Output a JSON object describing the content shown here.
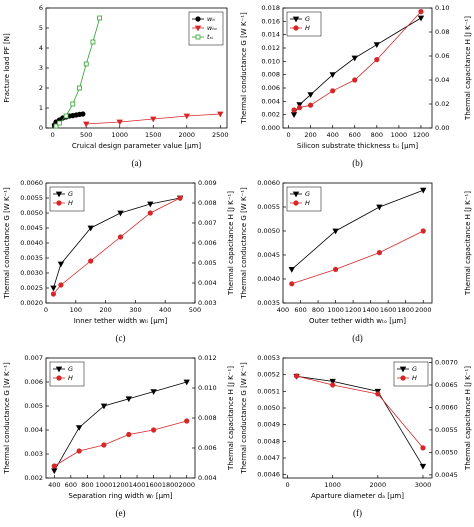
{
  "chart_data": [
    {
      "type": "line",
      "caption": "(a)",
      "xlabel": "Cruical design parameter value [μm]",
      "ylabel": "Fracture load PF [N]",
      "xlim": [
        -100,
        2600
      ],
      "xticks": [
        0,
        500,
        1000,
        1500,
        2000,
        2500
      ],
      "ylim": [
        0,
        6
      ],
      "yticks": [
        0,
        1,
        2,
        3,
        4,
        5,
        6
      ],
      "legend": "upper right",
      "series": [
        {
          "name": "wₜᵢ",
          "color": "#000000",
          "marker": "circle",
          "filled": true,
          "x": [
            25,
            50,
            100,
            150,
            200,
            250,
            300,
            350,
            400,
            450
          ],
          "values": [
            0.15,
            0.3,
            0.4,
            0.5,
            0.55,
            0.6,
            0.62,
            0.65,
            0.68,
            0.7
          ]
        },
        {
          "name": "wₜₒ",
          "color": "#d62728",
          "marker": "triangle-down",
          "filled": true,
          "x": [
            500,
            1000,
            1500,
            2000,
            2500
          ],
          "values": [
            0.2,
            0.3,
            0.45,
            0.6,
            0.7
          ]
        },
        {
          "name": "tₛᵢ",
          "color": "#2ca02c",
          "marker": "square",
          "filled": false,
          "x": [
            50,
            100,
            200,
            300,
            400,
            500,
            600,
            700
          ],
          "values": [
            0.1,
            0.25,
            0.6,
            1.2,
            2.0,
            3.2,
            4.3,
            5.5
          ]
        }
      ]
    },
    {
      "type": "line",
      "caption": "(b)",
      "xlabel": "Silicon substrate thickness tₛᵢ [μm]",
      "ylabel": "Thermal conductance G [W K⁻¹]",
      "y2label": "Thermal capacitance H [J K⁻¹]",
      "xlim": [
        -50,
        1300
      ],
      "xticks": [
        0,
        200,
        400,
        600,
        800,
        1000,
        1200
      ],
      "ylim": [
        0,
        0.018
      ],
      "yticks": [
        {
          "value": 0,
          "label": "0.000"
        },
        0.002,
        0.004,
        0.006,
        0.008,
        {
          "value": 0.01,
          "label": "0.010"
        },
        0.012,
        0.014,
        0.016,
        0.018
      ],
      "y2lim": [
        0,
        0.1
      ],
      "y2ticks": [
        {
          "value": 0,
          "label": "0.00"
        },
        0.02,
        0.04,
        0.06,
        0.08,
        {
          "value": 0.1,
          "label": "0.10"
        }
      ],
      "legend": "upper left",
      "series": [
        {
          "name": "G",
          "color": "#000000",
          "marker": "triangle-down",
          "filled": true,
          "x": [
            50,
            100,
            200,
            400,
            600,
            800,
            1200
          ],
          "values": [
            0.002,
            0.0035,
            0.005,
            0.008,
            0.0105,
            0.0125,
            0.0165
          ]
        },
        {
          "name": "H",
          "color": "#d62728",
          "marker": "circle",
          "filled": true,
          "axis": "y2",
          "x": [
            50,
            100,
            200,
            400,
            600,
            800,
            1200
          ],
          "values": [
            0.015,
            0.017,
            0.019,
            0.031,
            0.04,
            0.057,
            0.097
          ]
        }
      ]
    },
    {
      "type": "line",
      "caption": "(c)",
      "xlabel": "Inner tether width wₜᵢ [μm]",
      "ylabel": "Thermal conductance G [W K⁻¹]",
      "y2label": "Thermal capacitance H [J K⁻¹]",
      "xlim": [
        0,
        500
      ],
      "xticks": [
        0,
        100,
        200,
        300,
        400,
        500
      ],
      "ylim": [
        0.002,
        0.006
      ],
      "yticks": [
        {
          "value": 0.002,
          "label": "0.0020"
        },
        0.0025,
        {
          "value": 0.003,
          "label": "0.0030"
        },
        0.0035,
        {
          "value": 0.004,
          "label": "0.0040"
        },
        0.0045,
        {
          "value": 0.005,
          "label": "0.0050"
        },
        0.0055,
        {
          "value": 0.006,
          "label": "0.0060"
        }
      ],
      "y2lim": [
        0.003,
        0.009
      ],
      "y2ticks": [
        0.003,
        0.004,
        0.005,
        0.006,
        0.007,
        0.008,
        0.009
      ],
      "legend": "upper left",
      "series": [
        {
          "name": "G",
          "color": "#000000",
          "marker": "triangle-down",
          "filled": true,
          "x": [
            25,
            50,
            150,
            250,
            350,
            450
          ],
          "values": [
            0.0025,
            0.0033,
            0.0045,
            0.005,
            0.0053,
            0.0055
          ]
        },
        {
          "name": "H",
          "color": "#d62728",
          "marker": "circle",
          "filled": true,
          "axis": "y2",
          "x": [
            25,
            50,
            150,
            250,
            350,
            450
          ],
          "values": [
            0.00345,
            0.0039,
            0.0051,
            0.0063,
            0.0075,
            0.00825
          ]
        }
      ]
    },
    {
      "type": "line",
      "caption": "(d)",
      "xlabel": "Outer tether width wₜₒ [μm]",
      "ylabel": "Thermal conductance G [W K⁻¹]",
      "y2label": "Thermal capacitance H [J K⁻¹]",
      "xlim": [
        400,
        2100
      ],
      "xticks": [
        400,
        600,
        800,
        1000,
        1200,
        1400,
        1600,
        1800,
        2000
      ],
      "ylim": [
        0.0035,
        0.006
      ],
      "yticks": [
        0.0035,
        {
          "value": 0.004,
          "label": "0.0040"
        },
        0.0045,
        {
          "value": 0.005,
          "label": "0.0050"
        },
        0.0055,
        {
          "value": 0.006,
          "label": "0.0060"
        }
      ],
      "y2lim": [
        0.0035,
        0.006
      ],
      "legend": "upper left",
      "series": [
        {
          "name": "G",
          "color": "#000000",
          "marker": "triangle-down",
          "filled": true,
          "x": [
            500,
            1000,
            1500,
            2000
          ],
          "values": [
            0.0042,
            0.005,
            0.0055,
            0.00585
          ]
        },
        {
          "name": "H",
          "color": "#d62728",
          "marker": "circle",
          "filled": true,
          "axis": "y2",
          "x": [
            500,
            1000,
            1500,
            2000
          ],
          "values": [
            0.0039,
            0.0042,
            0.00455,
            0.005
          ]
        }
      ]
    },
    {
      "type": "line",
      "caption": "(e)",
      "xlabel": "Separation ring width wᵣ [μm]",
      "ylabel": "Thermal conductance G [W K⁻¹]",
      "y2label": "Thermal capacitance H [J K⁻¹]",
      "xlim": [
        300,
        2100
      ],
      "xticks": [
        400,
        600,
        800,
        1000,
        1200,
        1400,
        1600,
        1800,
        2000
      ],
      "ylim": [
        0.002,
        0.007
      ],
      "yticks": [
        0.002,
        0.003,
        0.004,
        0.005,
        0.006,
        0.007
      ],
      "y2lim": [
        0.004,
        0.012
      ],
      "y2ticks": [
        0.004,
        0.006,
        0.008,
        {
          "value": 0.01,
          "label": "0.010"
        },
        0.012
      ],
      "legend": "upper left",
      "series": [
        {
          "name": "G",
          "color": "#000000",
          "marker": "triangle-down",
          "filled": true,
          "x": [
            400,
            700,
            1000,
            1300,
            1600,
            2000
          ],
          "values": [
            0.0023,
            0.0041,
            0.005,
            0.0053,
            0.0056,
            0.006
          ]
        },
        {
          "name": "H",
          "color": "#d62728",
          "marker": "circle",
          "filled": true,
          "axis": "y2",
          "x": [
            400,
            700,
            1000,
            1300,
            1600,
            2000
          ],
          "values": [
            0.0048,
            0.0058,
            0.0062,
            0.0069,
            0.0072,
            0.0078
          ]
        }
      ]
    },
    {
      "type": "line",
      "caption": "(f)",
      "xlabel": "Aparture diameter dₐ [μm]",
      "ylabel": "Thermal conductance G [W K⁻¹]",
      "y2label": "Thermal capacitance H [J K⁻¹]",
      "xlim": [
        -100,
        3200
      ],
      "xticks": [
        0,
        1000,
        2000,
        3000
      ],
      "ylim": [
        0.00458,
        0.0053
      ],
      "yticks": [
        0.0046,
        0.0047,
        0.0048,
        0.0049,
        {
          "value": 0.005,
          "label": "0.0050"
        },
        0.0051,
        0.0052,
        0.0053
      ],
      "y2lim": [
        0.00443,
        0.0071
      ],
      "y2ticks": [
        0.0045,
        {
          "value": 0.005,
          "label": "0.0050"
        },
        0.0055,
        {
          "value": 0.006,
          "label": "0.0060"
        },
        0.0065,
        {
          "value": 0.007,
          "label": "0.0070"
        }
      ],
      "legend": "upper right",
      "series": [
        {
          "name": "G",
          "color": "#000000",
          "marker": "triangle-down",
          "filled": true,
          "x": [
            200,
            1000,
            2000,
            3000
          ],
          "values": [
            0.00519,
            0.00516,
            0.0051,
            0.00465
          ]
        },
        {
          "name": "H",
          "color": "#d62728",
          "marker": "circle",
          "filled": true,
          "axis": "y2",
          "x": [
            200,
            1000,
            2000,
            3000
          ],
          "values": [
            0.0067,
            0.0065,
            0.0063,
            0.0051
          ]
        }
      ]
    }
  ]
}
